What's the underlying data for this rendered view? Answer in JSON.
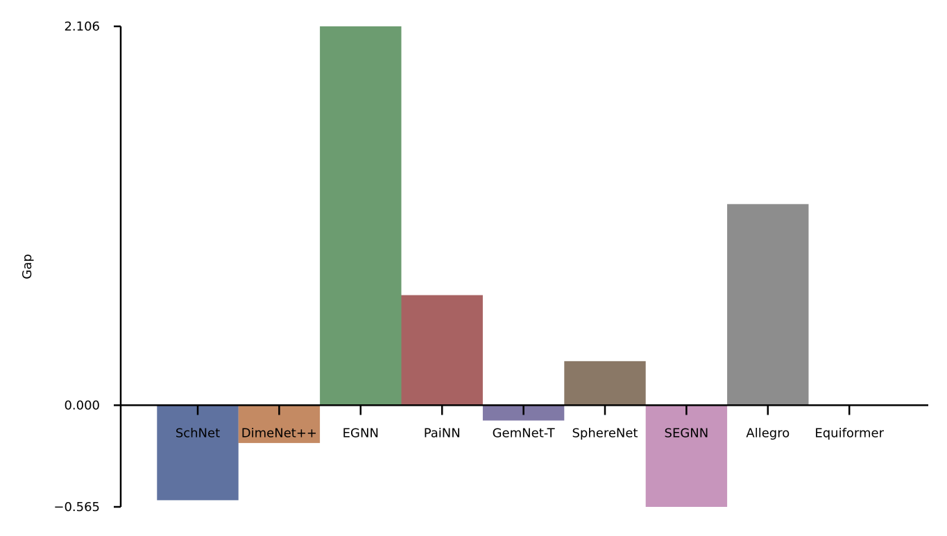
{
  "chart_data": {
    "type": "bar",
    "title": "",
    "xlabel": "",
    "ylabel": "Gap",
    "categories": [
      "SchNet",
      "DimeNet++",
      "EGNN",
      "PaiNN",
      "GemNet-T",
      "SphereNet",
      "SEGNN",
      "Allegro",
      "Equiformer"
    ],
    "values": [
      -0.528,
      -0.21,
      2.106,
      0.612,
      -0.085,
      0.245,
      -0.565,
      1.118,
      0.0
    ],
    "colors": [
      "#5f72a0",
      "#c48a63",
      "#6c9c70",
      "#a86262",
      "#8079a6",
      "#8a7866",
      "#c795bc",
      "#8d8d8d",
      "#c9c46a"
    ],
    "yticks": [
      -0.565,
      0.0,
      2.106
    ],
    "ytick_labels": [
      "−0.565",
      "0.000",
      "2.106"
    ],
    "ylim": [
      -0.565,
      2.106
    ],
    "grid": false,
    "legend": "none"
  }
}
